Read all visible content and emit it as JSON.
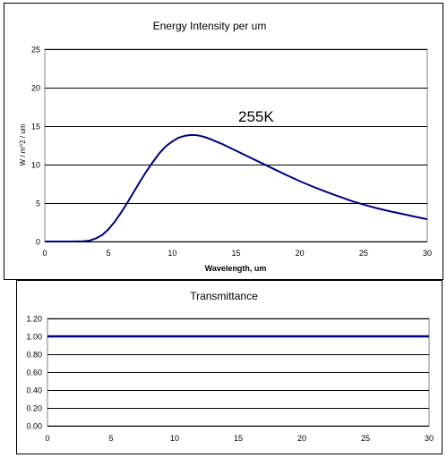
{
  "chart_data": [
    {
      "type": "line",
      "title": "Energy Intensity per um",
      "xlabel": "Wavelength, um",
      "ylabel": "W / m^2 / um",
      "xlim": [
        0,
        30
      ],
      "ylim": [
        0,
        25
      ],
      "x_ticks": [
        "0",
        "5",
        "10",
        "15",
        "20",
        "25",
        "30"
      ],
      "y_ticks": [
        "0",
        "5",
        "10",
        "15",
        "20",
        "25"
      ],
      "grid": true,
      "annotation": "255K",
      "series": [
        {
          "color": "#000080",
          "points": [
            [
              0,
              0
            ],
            [
              1,
              0
            ],
            [
              2,
              0
            ],
            [
              3,
              0.02
            ],
            [
              3.5,
              0.12
            ],
            [
              4,
              0.4
            ],
            [
              4.5,
              0.85
            ],
            [
              5,
              1.6
            ],
            [
              5.5,
              2.6
            ],
            [
              6,
              3.8
            ],
            [
              6.5,
              5.1
            ],
            [
              7,
              6.5
            ],
            [
              7.5,
              7.9
            ],
            [
              8,
              9.2
            ],
            [
              8.5,
              10.4
            ],
            [
              9,
              11.5
            ],
            [
              9.5,
              12.4
            ],
            [
              10,
              13.0
            ],
            [
              10.5,
              13.5
            ],
            [
              11,
              13.75
            ],
            [
              11.5,
              13.85
            ],
            [
              12,
              13.8
            ],
            [
              12.5,
              13.6
            ],
            [
              13,
              13.3
            ],
            [
              14,
              12.6
            ],
            [
              15,
              11.8
            ],
            [
              16,
              11.0
            ],
            [
              17,
              10.2
            ],
            [
              18,
              9.4
            ],
            [
              19,
              8.6
            ],
            [
              20,
              7.85
            ],
            [
              21,
              7.15
            ],
            [
              22,
              6.5
            ],
            [
              23,
              5.9
            ],
            [
              24,
              5.3
            ],
            [
              25,
              4.8
            ],
            [
              26,
              4.35
            ],
            [
              27,
              3.95
            ],
            [
              28,
              3.6
            ],
            [
              29,
              3.25
            ],
            [
              30,
              2.9
            ]
          ]
        }
      ]
    },
    {
      "type": "line",
      "title": "Transmittance",
      "xlim": [
        0,
        30
      ],
      "ylim": [
        0,
        1.2
      ],
      "x_ticks": [
        "0",
        "5",
        "10",
        "15",
        "20",
        "25",
        "30"
      ],
      "y_ticks": [
        "0.00",
        "0.20",
        "0.40",
        "0.60",
        "0.80",
        "1.00",
        "1.20"
      ],
      "grid": true,
      "series": [
        {
          "color": "#000080",
          "points": [
            [
              0,
              1.0
            ],
            [
              30,
              1.0
            ]
          ]
        }
      ]
    }
  ]
}
